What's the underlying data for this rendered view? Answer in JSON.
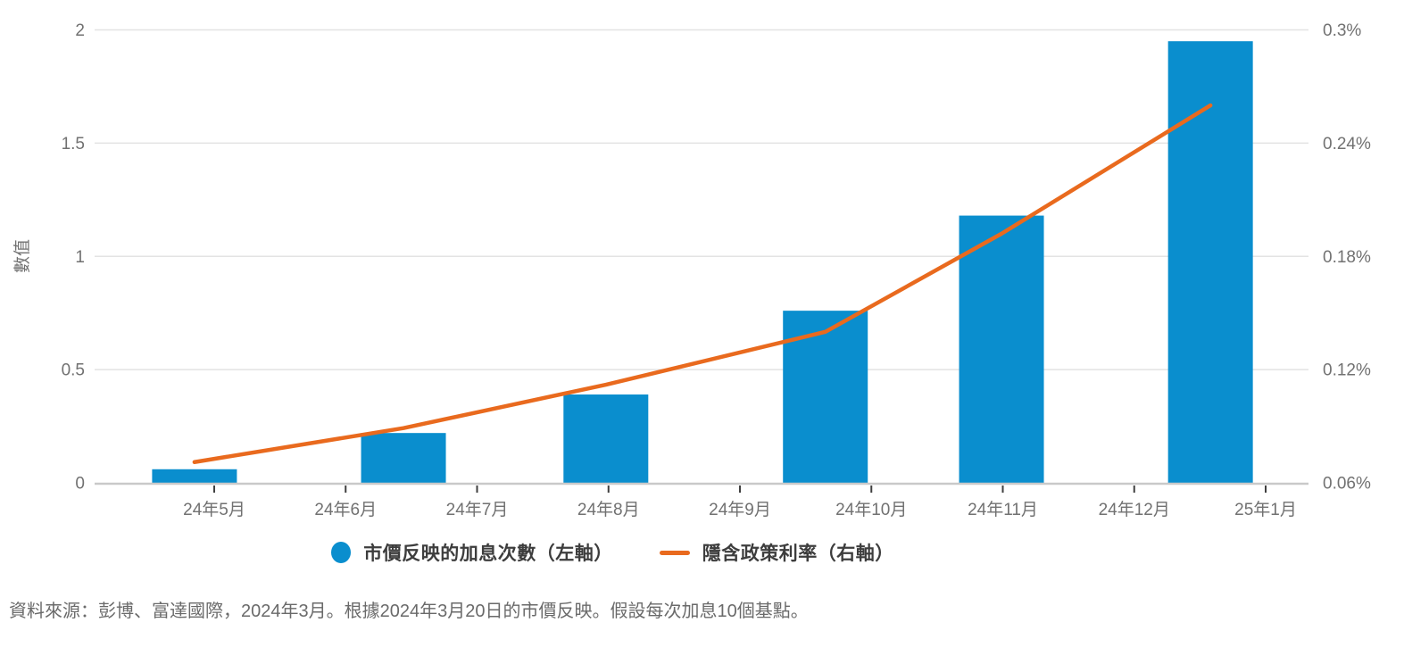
{
  "colors": {
    "bar_blue": "#0a8ece",
    "line_orange": "#e96a1e",
    "gridline": "#e3e3e3",
    "axis_line": "#c9c9c9",
    "tick_mark": "#3f3f3f",
    "tick_label": "#717171",
    "legend_text": "#3d3d3d",
    "footer_text": "#6a6a6a",
    "background": "#ffffff"
  },
  "chart_data": {
    "type": "combo-bar-line-dual-axis",
    "title": "",
    "grid": true,
    "x_axis": {
      "tick_labels": [
        "24年5月",
        "24年6月",
        "24年7月",
        "24年8月",
        "24年9月",
        "24年10月",
        "24年11月",
        "24年12月",
        "25年1月"
      ],
      "x_unit": "month ticks: 0 = 24年5月 … 8 = 25年1月 (series x are fractional month positions)"
    },
    "left_axis": {
      "title": "數值",
      "range": [
        0,
        2
      ],
      "ticks": [
        0,
        0.5,
        1,
        1.5,
        2
      ],
      "tick_labels": [
        "0",
        "0.5",
        "1",
        "1.5",
        "2"
      ]
    },
    "right_axis": {
      "title": "",
      "range": [
        0.06,
        0.3
      ],
      "ticks": [
        0.06,
        0.12,
        0.18,
        0.24,
        0.3
      ],
      "tick_labels": [
        "0.06%",
        "0.12%",
        "0.18%",
        "0.24%",
        "0.3%"
      ]
    },
    "series": [
      {
        "name": "市價反映的加息次數（左軸）",
        "type": "bar",
        "axis": "left",
        "color": "#0a8ece",
        "x": [
          -0.15,
          1.44,
          2.98,
          4.65,
          5.99,
          7.58
        ],
        "values": [
          0.06,
          0.22,
          0.39,
          0.76,
          1.18,
          1.95
        ]
      },
      {
        "name": "隱含政策利率（右軸）",
        "type": "line",
        "axis": "right",
        "color": "#e96a1e",
        "x": [
          -0.15,
          1.44,
          2.98,
          4.65,
          5.99,
          7.58
        ],
        "values": [
          0.071,
          0.089,
          0.112,
          0.14,
          0.192,
          0.26
        ]
      }
    ],
    "legend_position": "bottom-center"
  },
  "legend": {
    "items": [
      {
        "label": "市價反映的加息次數（左軸）",
        "marker": "circle",
        "color": "#0a8ece"
      },
      {
        "label": "隱含政策利率（右軸）",
        "marker": "line",
        "color": "#e96a1e"
      }
    ]
  },
  "footer": {
    "source_note": "資料來源：彭博、富達國際，2024年3月。根據2024年3月20日的市價反映。假設每次加息10個基點。"
  }
}
